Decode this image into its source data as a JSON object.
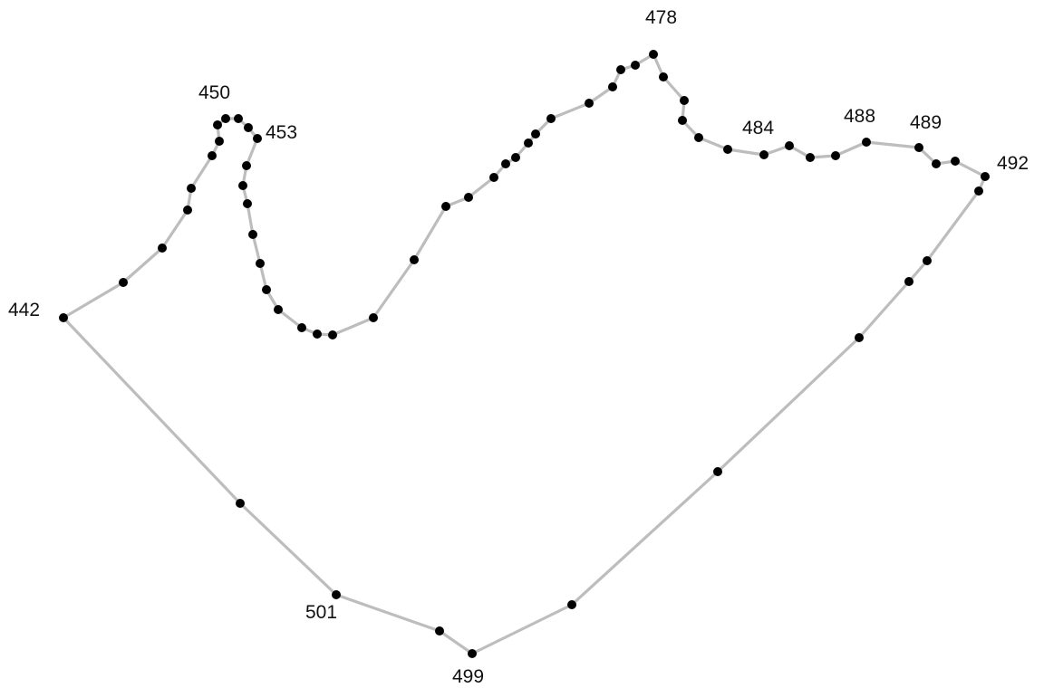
{
  "diagram": {
    "type": "numbered polygon outline",
    "stroke_color": "#bdbdbd",
    "point_color": "#000000",
    "label_color": "#111111",
    "labels": [
      "442",
      "450",
      "453",
      "478",
      "484",
      "488",
      "489",
      "492",
      "499",
      "501"
    ]
  }
}
